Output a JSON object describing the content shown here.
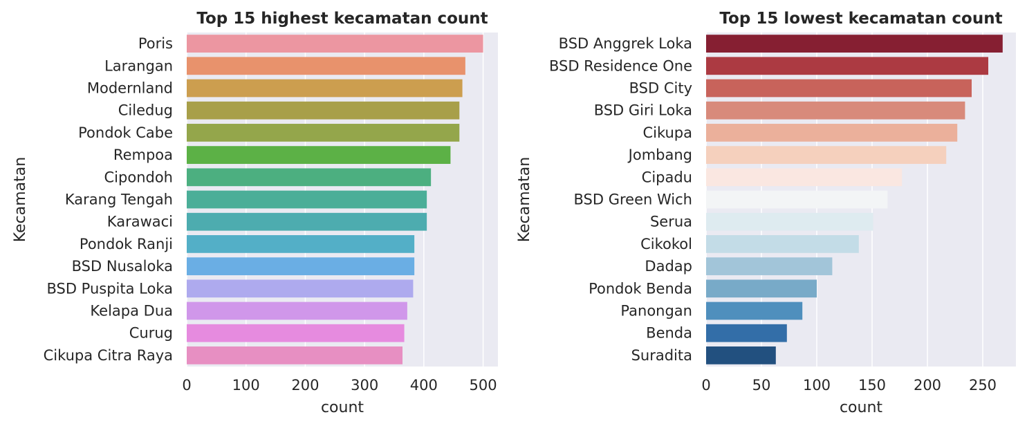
{
  "chart_data": [
    {
      "type": "bar",
      "orientation": "horizontal",
      "title": "Top 15 highest kecamatan count",
      "xlabel": "count",
      "ylabel": "Kecamatan",
      "xlim": [
        0,
        525
      ],
      "xticks": [
        0,
        100,
        200,
        300,
        400,
        500
      ],
      "grid": true,
      "categories": [
        "Poris",
        "Larangan",
        "Modernland",
        "Ciledug",
        "Pondok Cabe",
        "Rempoa",
        "Cipondoh",
        "Karang Tengah",
        "Karawaci",
        "Pondok Ranji",
        "BSD Nusaloka",
        "BSD Puspita Loka",
        "Kelapa Dua",
        "Curug",
        "Cikupa Citra Raya"
      ],
      "values": [
        500,
        470,
        465,
        460,
        460,
        445,
        412,
        405,
        405,
        384,
        384,
        382,
        372,
        367,
        364
      ],
      "colors": [
        "#ec96a1",
        "#e8926c",
        "#cc9e4f",
        "#a89f49",
        "#94a64b",
        "#5cb146",
        "#4caf80",
        "#4bae98",
        "#4dacaf",
        "#53afc7",
        "#6aaee4",
        "#aeaaee",
        "#d097ea",
        "#e68bdf",
        "#e78fc2"
      ]
    },
    {
      "type": "bar",
      "orientation": "horizontal",
      "title": "Top 15 lowest kecamatan count",
      "xlabel": "count",
      "ylabel": "Kecamatan",
      "xlim": [
        0,
        280
      ],
      "xticks": [
        0,
        50,
        100,
        150,
        200,
        250
      ],
      "grid": true,
      "categories": [
        "BSD Anggrek Loka",
        "BSD Residence One",
        "BSD City",
        "BSD Giri Loka",
        "Cikupa",
        "Jombang",
        "Cipadu",
        "BSD Green Wich",
        "Serua",
        "Cikokol",
        "Dadap",
        "Pondok Benda",
        "Panongan",
        "Benda",
        "Suradita"
      ],
      "values": [
        268,
        255,
        240,
        234,
        227,
        217,
        177,
        164,
        151,
        138,
        114,
        100,
        87,
        73,
        63
      ],
      "colors": [
        "#861f32",
        "#ac3a42",
        "#c8635b",
        "#d88a7b",
        "#ebb09b",
        "#f5d0bd",
        "#fae7e1",
        "#f3f5f6",
        "#deebf0",
        "#c3dce7",
        "#a2c5d9",
        "#78aac8",
        "#4f8fbd",
        "#336ea8",
        "#22507f"
      ]
    }
  ]
}
